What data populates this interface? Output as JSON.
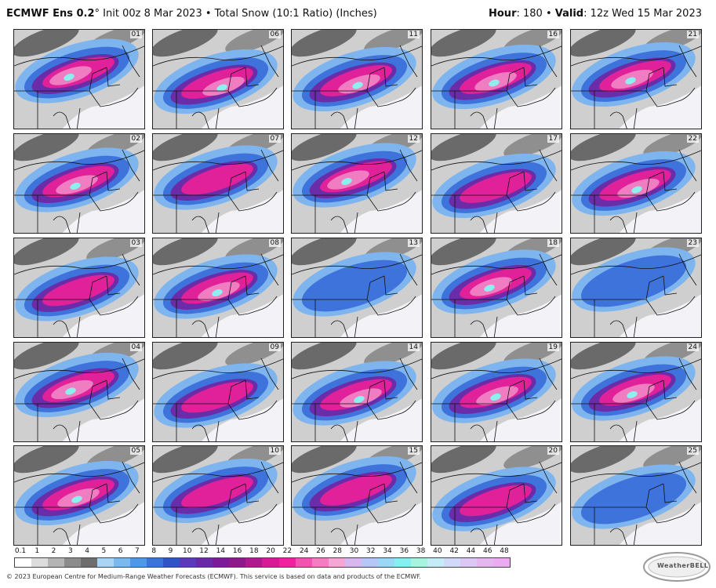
{
  "header": {
    "model": "ECMWF Ens 0.2",
    "degree": "°",
    "init": " Init 00z 8 Mar 2023",
    "bullet": " • ",
    "product": "Total Snow (10:1 Ratio) (Inches)",
    "hour_label": "Hour",
    "hour_value": ": 180",
    "valid_label": "Valid",
    "valid_value": ": 12z Wed 15 Mar 2023"
  },
  "members": [
    "01",
    "02",
    "03",
    "04",
    "05",
    "06",
    "07",
    "08",
    "09",
    "10",
    "11",
    "12",
    "13",
    "14",
    "15",
    "16",
    "17",
    "18",
    "19",
    "20",
    "21",
    "22",
    "23",
    "24",
    "25"
  ],
  "member_snow": [
    {
      "level": "heavy"
    },
    {
      "level": "heavy"
    },
    {
      "level": "moderate"
    },
    {
      "level": "heavy"
    },
    {
      "level": "heavy"
    },
    {
      "level": "heavy"
    },
    {
      "level": "moderate"
    },
    {
      "level": "heavy"
    },
    {
      "level": "moderate"
    },
    {
      "level": "moderate"
    },
    {
      "level": "heavy"
    },
    {
      "level": "heavy"
    },
    {
      "level": "light"
    },
    {
      "level": "heavy"
    },
    {
      "level": "moderate"
    },
    {
      "level": "heavy"
    },
    {
      "level": "moderate"
    },
    {
      "level": "heavy"
    },
    {
      "level": "heavy"
    },
    {
      "level": "moderate"
    },
    {
      "level": "heavy"
    },
    {
      "level": "heavy"
    },
    {
      "level": "light"
    },
    {
      "level": "heavy"
    },
    {
      "level": "light"
    }
  ],
  "colorbar": {
    "ticks": [
      "0.1",
      "1",
      "2",
      "3",
      "4",
      "5",
      "6",
      "7",
      "8",
      "9",
      "10",
      "12",
      "14",
      "16",
      "18",
      "20",
      "22",
      "24",
      "26",
      "28",
      "30",
      "32",
      "34",
      "36",
      "38",
      "40",
      "42",
      "44",
      "46",
      "48"
    ],
    "colors": [
      "#ffffff",
      "#dcdcdc",
      "#b4b4b4",
      "#8c8c8c",
      "#6e6e6e",
      "#a8d4f5",
      "#7ab8f0",
      "#4f98e8",
      "#3a74d8",
      "#2f55c4",
      "#5a3ab8",
      "#6a2aa6",
      "#7c1a98",
      "#8c1a8a",
      "#b01a90",
      "#d81a98",
      "#f020a0",
      "#f252b0",
      "#f47cc0",
      "#f6a6d4",
      "#d8b6f0",
      "#b6c6f8",
      "#9ad8f8",
      "#86f0f0",
      "#a6f4e0",
      "#c4ecf6",
      "#d2d8f8",
      "#dcc8f4",
      "#e4b8ee",
      "#ecaaf0"
    ]
  },
  "footer": "© 2023 European Centre for Medium-Range Weather Forecasts (ECMWF). This service is based on data and products of the ECMWF.",
  "logo": {
    "text": "WeatherBELL"
  },
  "palette": {
    "none": "#f2f2f7",
    "trace": "#cfcfcf",
    "light": "#8f8f8f",
    "gray_dark": "#6a6a6a",
    "blue_light": "#7fb5ee",
    "blue": "#3f73dc",
    "purple": "#6a2ca8",
    "magenta": "#e0219a",
    "pink": "#f07cc2",
    "cyan": "#8ef0ee"
  }
}
